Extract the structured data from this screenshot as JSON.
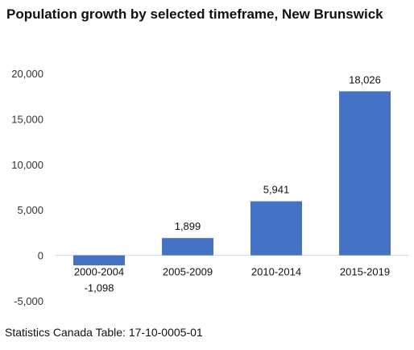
{
  "chart_data": {
    "type": "bar",
    "title": "Population growth by selected timeframe, New Brunswick",
    "categories": [
      "2000-2004",
      "2005-2009",
      "2010-2014",
      "2015-2019"
    ],
    "values": [
      -1098,
      1899,
      5941,
      18026
    ],
    "data_labels": [
      "-1,098",
      "1,899",
      "5,941",
      "18,026"
    ],
    "xlabel": "",
    "ylabel": "",
    "ylim": [
      -5000,
      20000
    ],
    "y_ticks": [
      20000,
      15000,
      10000,
      5000,
      0,
      -5000
    ],
    "y_tick_labels": [
      "20,000",
      "15,000",
      "10,000",
      "5,000",
      "0",
      "-5,000"
    ],
    "grid": false,
    "legend": "none",
    "bar_color": "#4472C4"
  },
  "source": "Statistics Canada Table: 17-10-0005-01"
}
